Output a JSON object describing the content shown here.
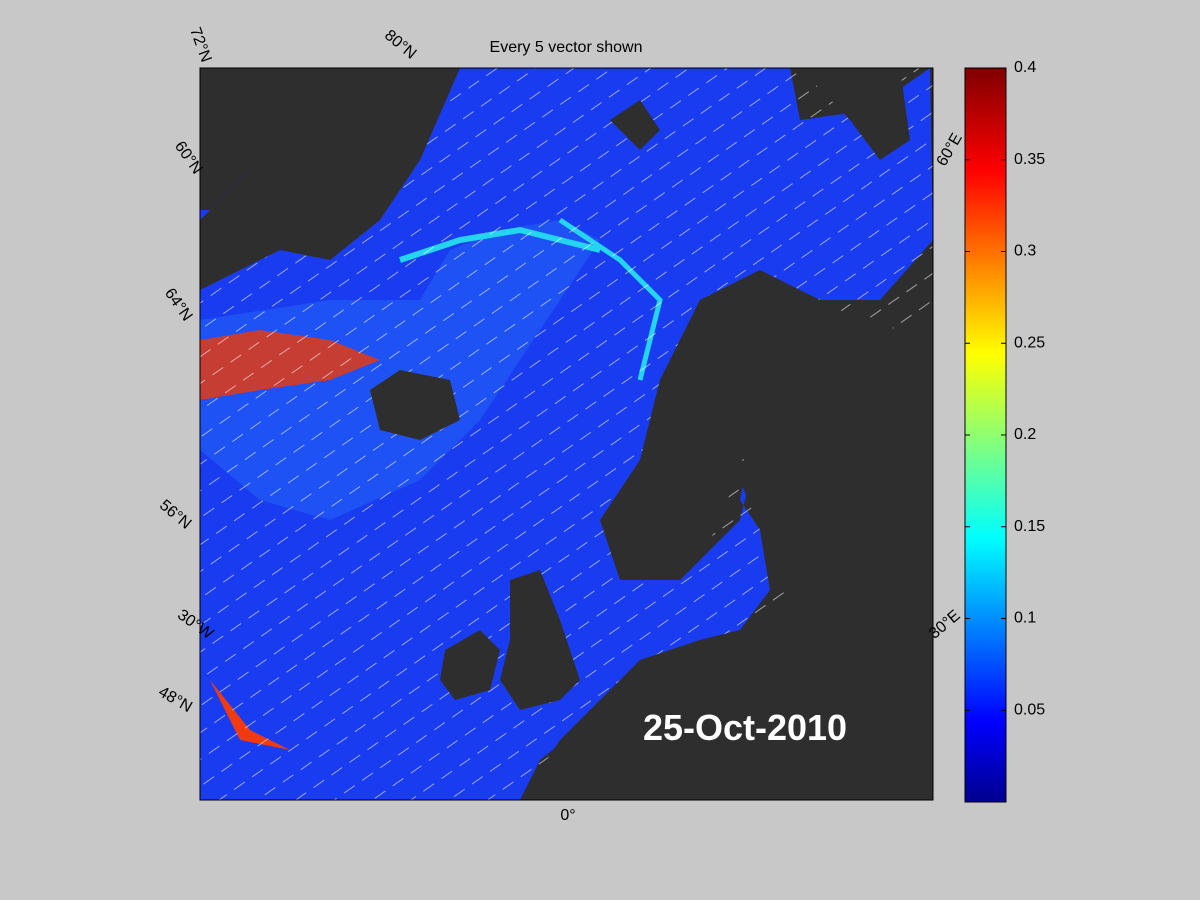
{
  "map": {
    "title": "Every 5 vector shown",
    "date": "25-Oct-2010",
    "graticule_labels": [
      "72°N",
      "80°N",
      "60°N",
      "64°N",
      "56°N",
      "30°W",
      "48°N",
      "0°",
      "30°E",
      "60°E"
    ]
  },
  "colorbar": {
    "lim": [
      0,
      0.4
    ],
    "ticks": [
      0.05,
      0.1,
      0.15,
      0.2,
      0.25,
      0.3,
      0.35,
      0.4
    ]
  }
}
